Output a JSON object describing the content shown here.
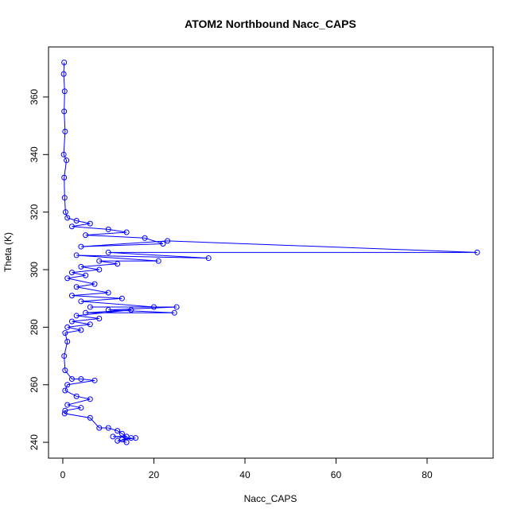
{
  "chart_data": {
    "type": "line",
    "title": "ATOM2 Northbound Nacc_CAPS",
    "x_label": "Nacc_CAPS",
    "y_label": "Theta (K)",
    "color": "#0000ff",
    "markers": true,
    "x": [
      0.3,
      0.2,
      0.4,
      0.3,
      0.5,
      0.2,
      0.8,
      0.3,
      0.4,
      0.6,
      1,
      3,
      6,
      2,
      10,
      14,
      5,
      18,
      22,
      4,
      23,
      91,
      10,
      32,
      3,
      21,
      8,
      12,
      4,
      8,
      2,
      5,
      1,
      7,
      3,
      10,
      2,
      13,
      4,
      20,
      6,
      25,
      10,
      24.5,
      5,
      15,
      3,
      8,
      2,
      6,
      1,
      4,
      0.5,
      1,
      0.3,
      0.5,
      2,
      4,
      7,
      1,
      0.5,
      3,
      6,
      1,
      4,
      0.5,
      0.4,
      6,
      8,
      10,
      12,
      13,
      14,
      11,
      15,
      13,
      16,
      12,
      14
    ],
    "values": [
      372,
      368,
      362,
      355,
      348,
      340,
      338,
      332,
      325,
      320,
      318,
      317,
      316,
      315,
      314,
      313,
      312,
      311,
      309,
      308,
      310,
      306,
      306,
      304,
      305,
      303,
      303,
      302,
      301,
      300,
      299,
      298,
      297,
      295,
      294,
      292,
      291,
      290,
      289,
      287,
      287,
      287,
      286,
      285,
      285,
      286,
      284,
      283,
      282,
      281,
      280,
      279,
      278,
      275,
      270,
      265,
      262,
      262,
      261.5,
      260,
      258,
      256,
      255,
      253,
      252,
      251,
      250,
      248.5,
      245,
      245,
      244,
      243,
      242,
      242,
      241.5,
      241,
      241.5,
      240.5,
      240
    ],
    "xlim": [
      -3.14,
      94.5
    ],
    "ylim": [
      234.5,
      377.4
    ],
    "xticks": [
      0,
      20,
      40,
      60,
      80
    ],
    "yticks": [
      240,
      260,
      280,
      300,
      320,
      340,
      360
    ]
  }
}
